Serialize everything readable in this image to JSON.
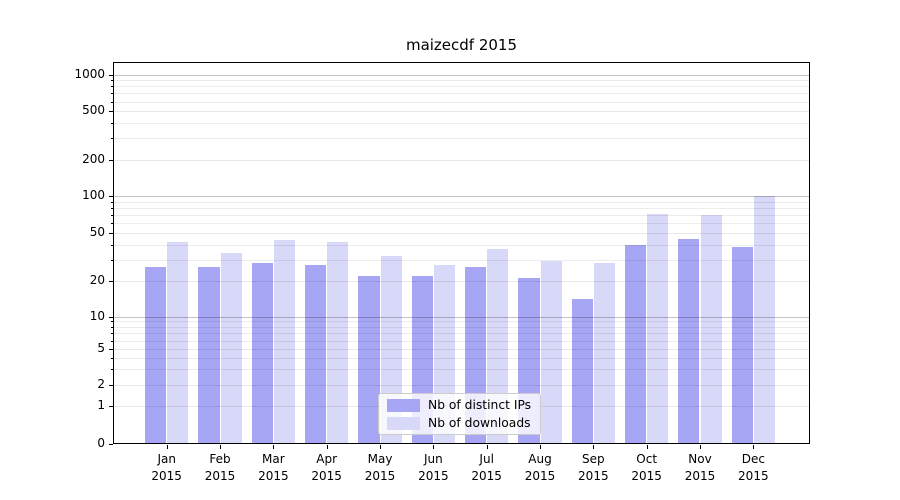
{
  "title": "maizecdf 2015",
  "chart_data": {
    "type": "bar",
    "title": "maizecdf 2015",
    "categories": [
      "Jan",
      "Feb",
      "Mar",
      "Apr",
      "May",
      "Jun",
      "Jul",
      "Aug",
      "Sep",
      "Oct",
      "Nov",
      "Dec"
    ],
    "year_label": "2015",
    "series": [
      {
        "name": "Nb of distinct IPs",
        "color": "#a6a6f4",
        "values": [
          26,
          26,
          28,
          27,
          22,
          22,
          26,
          21,
          14,
          40,
          45,
          38
        ]
      },
      {
        "name": "Nb of downloads",
        "color": "#d8d8f8",
        "values": [
          42,
          34,
          44,
          42,
          32,
          27,
          37,
          29,
          28,
          72,
          70,
          100
        ]
      }
    ],
    "xlabel": "",
    "ylabel": "",
    "yticks": [
      0,
      1,
      2,
      5,
      10,
      20,
      50,
      100,
      200,
      500,
      1000
    ],
    "ylim": [
      0,
      1000
    ],
    "yscale": "symlog",
    "grid": true,
    "legend_position": "lower center"
  },
  "legend": {
    "items": [
      {
        "label": "Nb of distinct IPs",
        "color": "#a6a6f4"
      },
      {
        "label": "Nb of downloads",
        "color": "#d8d8f8"
      }
    ]
  }
}
